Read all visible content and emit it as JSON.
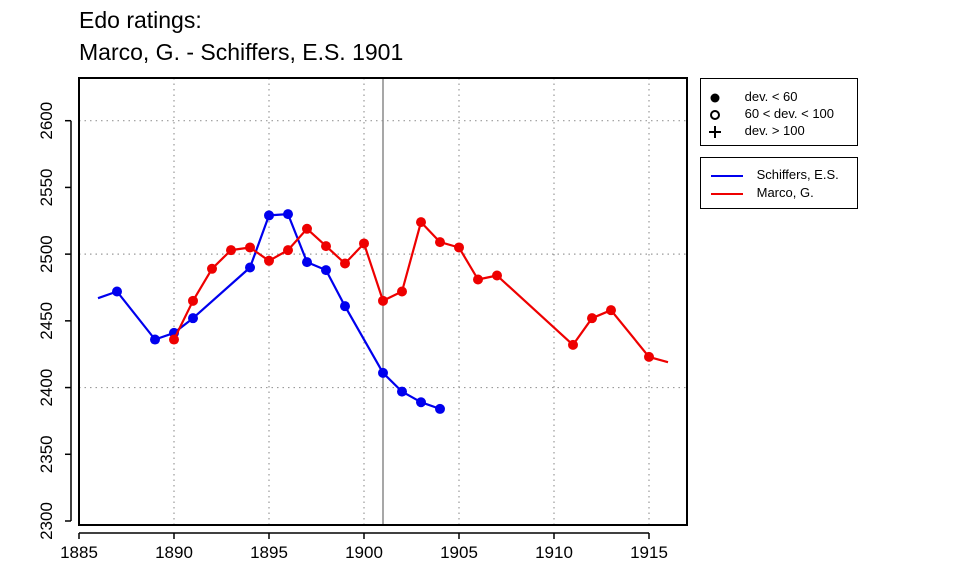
{
  "title_lines": [
    "Edo ratings:",
    "Marco, G. - Schiffers, E.S. 1901"
  ],
  "chart_data": {
    "type": "line",
    "xlim": [
      1885,
      1917
    ],
    "ylim": [
      2297,
      2632
    ],
    "x_ticks": [
      1885,
      1890,
      1895,
      1900,
      1905,
      1910,
      1915
    ],
    "y_ticks": [
      2300,
      2350,
      2400,
      2450,
      2500,
      2550,
      2600
    ],
    "grid_x": [
      1890,
      1895,
      1900,
      1905,
      1910,
      1915
    ],
    "grid_y": [
      2400,
      2500,
      2600
    ],
    "grid": true,
    "vertical_marker": 1901,
    "series": [
      {
        "name": "Schiffers, E.S.",
        "color": "#0000ee",
        "line": [
          [
            1886,
            2467
          ],
          [
            1887,
            2472
          ],
          [
            1889,
            2436
          ],
          [
            1890,
            2441
          ],
          [
            1891,
            2452
          ],
          [
            1894,
            2490
          ],
          [
            1895,
            2529
          ],
          [
            1896,
            2530
          ],
          [
            1897,
            2494
          ],
          [
            1898,
            2488
          ],
          [
            1899,
            2461
          ],
          [
            1901,
            2411
          ],
          [
            1902,
            2397
          ],
          [
            1903,
            2389
          ],
          [
            1904,
            2384
          ]
        ],
        "points": [
          [
            1887,
            2472
          ],
          [
            1889,
            2436
          ],
          [
            1890,
            2441
          ],
          [
            1891,
            2452
          ],
          [
            1894,
            2490
          ],
          [
            1895,
            2529
          ],
          [
            1896,
            2530
          ],
          [
            1897,
            2494
          ],
          [
            1898,
            2488
          ],
          [
            1899,
            2461
          ],
          [
            1901,
            2411
          ],
          [
            1902,
            2397
          ],
          [
            1903,
            2389
          ],
          [
            1904,
            2384
          ]
        ]
      },
      {
        "name": "Marco, G.",
        "color": "#ee0000",
        "line": [
          [
            1890,
            2436
          ],
          [
            1891,
            2465
          ],
          [
            1892,
            2489
          ],
          [
            1893,
            2503
          ],
          [
            1894,
            2505
          ],
          [
            1895,
            2495
          ],
          [
            1896,
            2503
          ],
          [
            1897,
            2519
          ],
          [
            1898,
            2506
          ],
          [
            1899,
            2493
          ],
          [
            1900,
            2508
          ],
          [
            1901,
            2465
          ],
          [
            1902,
            2472
          ],
          [
            1903,
            2524
          ],
          [
            1904,
            2509
          ],
          [
            1905,
            2505
          ],
          [
            1906,
            2481
          ],
          [
            1907,
            2484
          ],
          [
            1911,
            2432
          ],
          [
            1912,
            2452
          ],
          [
            1913,
            2458
          ],
          [
            1915,
            2423
          ],
          [
            1916,
            2419
          ]
        ],
        "points": [
          [
            1890,
            2436
          ],
          [
            1891,
            2465
          ],
          [
            1892,
            2489
          ],
          [
            1893,
            2503
          ],
          [
            1894,
            2505
          ],
          [
            1895,
            2495
          ],
          [
            1896,
            2503
          ],
          [
            1897,
            2519
          ],
          [
            1898,
            2506
          ],
          [
            1899,
            2493
          ],
          [
            1900,
            2508
          ],
          [
            1901,
            2465
          ],
          [
            1902,
            2472
          ],
          [
            1903,
            2524
          ],
          [
            1904,
            2509
          ],
          [
            1905,
            2505
          ],
          [
            1906,
            2481
          ],
          [
            1907,
            2484
          ],
          [
            1911,
            2432
          ],
          [
            1912,
            2452
          ],
          [
            1913,
            2458
          ],
          [
            1915,
            2423
          ]
        ]
      }
    ]
  },
  "symbol_legend": {
    "placement": "top-right",
    "items": [
      {
        "label": "dev. < 60",
        "symbol": "filled-circle"
      },
      {
        "label": "60 < dev. < 100",
        "symbol": "open-circle"
      },
      {
        "label": "dev. > 100",
        "symbol": "plus"
      }
    ]
  },
  "series_legend": {
    "placement": "right",
    "items": [
      {
        "label": "Schiffers, E.S.",
        "color": "#0000ee"
      },
      {
        "label": "Marco, G.",
        "color": "#ee0000"
      }
    ]
  }
}
